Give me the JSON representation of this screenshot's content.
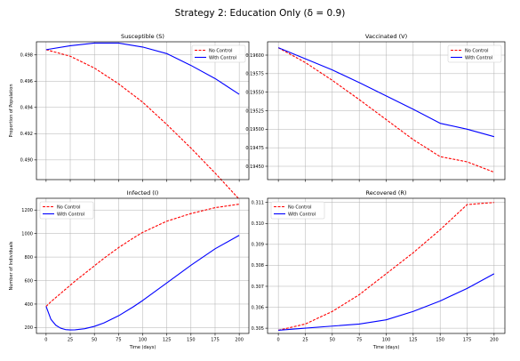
{
  "figure": {
    "suptitle": "Strategy 2: Education Only (δ = 0.9)"
  },
  "colors": {
    "no_control": "#ff0000",
    "with_control": "#0000ff",
    "grid": "#b0b0b0"
  },
  "chart_data": [
    {
      "type": "line",
      "title": "Susceptible (S)",
      "xlabel": "",
      "ylabel": "Proportion of Population",
      "xlim": [
        -10,
        210
      ],
      "ylim": [
        0.4885,
        0.499
      ],
      "xticks": [
        0,
        25,
        50,
        75,
        100,
        125,
        150,
        175,
        200
      ],
      "yticks": [
        0.49,
        0.492,
        0.494,
        0.496,
        0.498
      ],
      "ytick_labels": [
        "0.490",
        "0.492",
        "0.494",
        "0.496",
        "0.498"
      ],
      "show_xtick_labels": false,
      "grid": true,
      "legend_position": "upper right",
      "x": [
        0,
        25,
        50,
        75,
        100,
        125,
        150,
        175,
        200
      ],
      "series": [
        {
          "name": "No Control",
          "style": "dashed",
          "values": [
            0.4984,
            0.4979,
            0.497,
            0.4958,
            0.4944,
            0.4927,
            0.4909,
            0.489,
            0.487
          ]
        },
        {
          "name": "With Control",
          "style": "solid",
          "values": [
            0.4984,
            0.4987,
            0.4989,
            0.4989,
            0.4986,
            0.4981,
            0.4972,
            0.4962,
            0.495
          ]
        }
      ]
    },
    {
      "type": "line",
      "title": "Vaccinated (V)",
      "xlabel": "",
      "ylabel": "",
      "xlim": [
        -10,
        210
      ],
      "ylim": [
        0.19432,
        0.19618
      ],
      "xticks": [
        0,
        25,
        50,
        75,
        100,
        125,
        150,
        175,
        200
      ],
      "yticks": [
        0.1945,
        0.19475,
        0.195,
        0.19525,
        0.1955,
        0.19575,
        0.196
      ],
      "ytick_labels": [
        "0.19450",
        "0.19475",
        "0.19500",
        "0.19525",
        "0.19550",
        "0.19575",
        "0.19600"
      ],
      "show_xtick_labels": false,
      "grid": true,
      "legend_position": "upper right",
      "x": [
        0,
        25,
        50,
        75,
        100,
        125,
        150,
        175,
        200
      ],
      "series": [
        {
          "name": "No Control",
          "style": "dashed",
          "values": [
            0.1961,
            0.1959,
            0.19566,
            0.1954,
            0.19513,
            0.19486,
            0.19463,
            0.19456,
            0.19442
          ]
        },
        {
          "name": "With Control",
          "style": "solid",
          "values": [
            0.1961,
            0.19595,
            0.1958,
            0.19563,
            0.19545,
            0.19527,
            0.19508,
            0.195,
            0.1949
          ]
        }
      ]
    },
    {
      "type": "line",
      "title": "Infected (I)",
      "xlabel": "Time (days)",
      "ylabel": "Number of Individuals",
      "xlim": [
        -10,
        210
      ],
      "ylim": [
        150,
        1300
      ],
      "xticks": [
        0,
        25,
        50,
        75,
        100,
        125,
        150,
        175,
        200
      ],
      "xtick_labels": [
        "0",
        "25",
        "50",
        "75",
        "100",
        "125",
        "150",
        "175",
        "200"
      ],
      "yticks": [
        200,
        400,
        600,
        800,
        1000,
        1200
      ],
      "ytick_labels": [
        "200",
        "400",
        "600",
        "800",
        "1000",
        "1200"
      ],
      "show_xtick_labels": true,
      "grid": true,
      "legend_position": "upper left",
      "x": [
        0,
        5,
        10,
        15,
        20,
        25,
        30,
        40,
        50,
        60,
        75,
        90,
        100,
        125,
        150,
        175,
        200
      ],
      "series": [
        {
          "name": "No Control",
          "style": "dashed",
          "values": [
            380,
            420,
            455,
            490,
            525,
            560,
            595,
            660,
            725,
            790,
            880,
            960,
            1010,
            1105,
            1170,
            1220,
            1250
          ]
        },
        {
          "name": "With Control",
          "style": "solid",
          "values": [
            380,
            270,
            220,
            195,
            183,
            180,
            181,
            190,
            210,
            240,
            300,
            375,
            430,
            580,
            730,
            870,
            985
          ]
        }
      ]
    },
    {
      "type": "line",
      "title": "Recovered (R)",
      "xlabel": "Time (days)",
      "ylabel": "",
      "xlim": [
        -10,
        210
      ],
      "ylim": [
        0.30475,
        0.3112
      ],
      "xticks": [
        0,
        25,
        50,
        75,
        100,
        125,
        150,
        175,
        200
      ],
      "xtick_labels": [
        "0",
        "25",
        "50",
        "75",
        "100",
        "125",
        "150",
        "175",
        "200"
      ],
      "yticks": [
        0.305,
        0.306,
        0.307,
        0.308,
        0.309,
        0.31,
        0.311
      ],
      "ytick_labels": [
        "0.305",
        "0.306",
        "0.307",
        "0.308",
        "0.309",
        "0.310",
        "0.311"
      ],
      "show_xtick_labels": true,
      "grid": true,
      "legend_position": "upper left",
      "x": [
        0,
        25,
        50,
        75,
        100,
        125,
        150,
        175,
        200
      ],
      "series": [
        {
          "name": "No Control",
          "style": "dashed",
          "values": [
            0.3049,
            0.3052,
            0.3058,
            0.3066,
            0.3076,
            0.3086,
            0.3097,
            0.3109,
            0.311
          ]
        },
        {
          "name": "With Control",
          "style": "solid",
          "values": [
            0.3049,
            0.305,
            0.3051,
            0.3052,
            0.3054,
            0.3058,
            0.3063,
            0.3069,
            0.3076
          ]
        }
      ]
    }
  ]
}
